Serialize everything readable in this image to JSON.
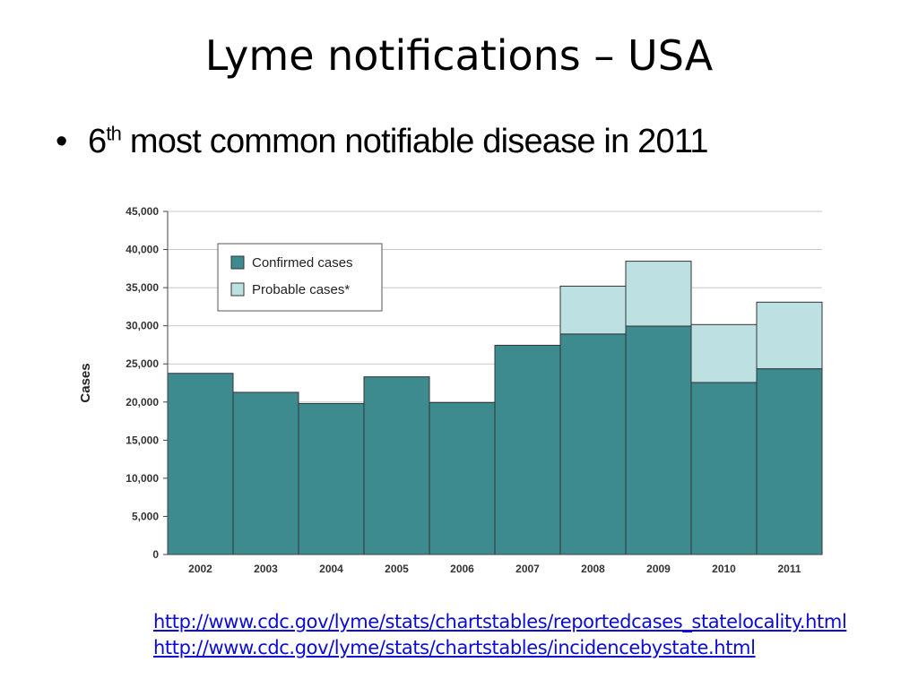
{
  "slide": {
    "title": "Lyme notifications – USA",
    "bullet": {
      "ordinal": "6",
      "superscript": "th",
      "rest": " most common notifiable disease in 2011"
    },
    "links": [
      "http://www.cdc.gov/lyme/stats/chartstables/reportedcases_statelocality.html",
      "http://www.cdc.gov/lyme/stats/chartstables/incidencebystate.html"
    ],
    "link_color": "#0b0bd6"
  },
  "chart_data": {
    "type": "bar",
    "stacked": true,
    "title": "",
    "xlabel": "",
    "ylabel": "Cases",
    "ylim": [
      0,
      45000
    ],
    "yticks": [
      0,
      5000,
      10000,
      15000,
      20000,
      25000,
      30000,
      35000,
      40000,
      45000
    ],
    "ytick_labels": [
      "0",
      "5,000",
      "10,000",
      "15,000",
      "20,000",
      "25,000",
      "30,000",
      "35,000",
      "40,000",
      "45,000"
    ],
    "categories": [
      "2002",
      "2003",
      "2004",
      "2005",
      "2006",
      "2007",
      "2008",
      "2009",
      "2010",
      "2011"
    ],
    "grid": true,
    "legend_position": "top-left",
    "series": [
      {
        "name": "Confirmed cases",
        "color": "#3d8b8f",
        "values": [
          23763,
          21273,
          19804,
          23305,
          19931,
          27444,
          28921,
          29959,
          22561,
          24364
        ]
      },
      {
        "name": "Probable cases*",
        "color": "#bde0e2",
        "values": [
          0,
          0,
          0,
          0,
          0,
          0,
          6277,
          8509,
          7599,
          8733
        ]
      }
    ]
  }
}
